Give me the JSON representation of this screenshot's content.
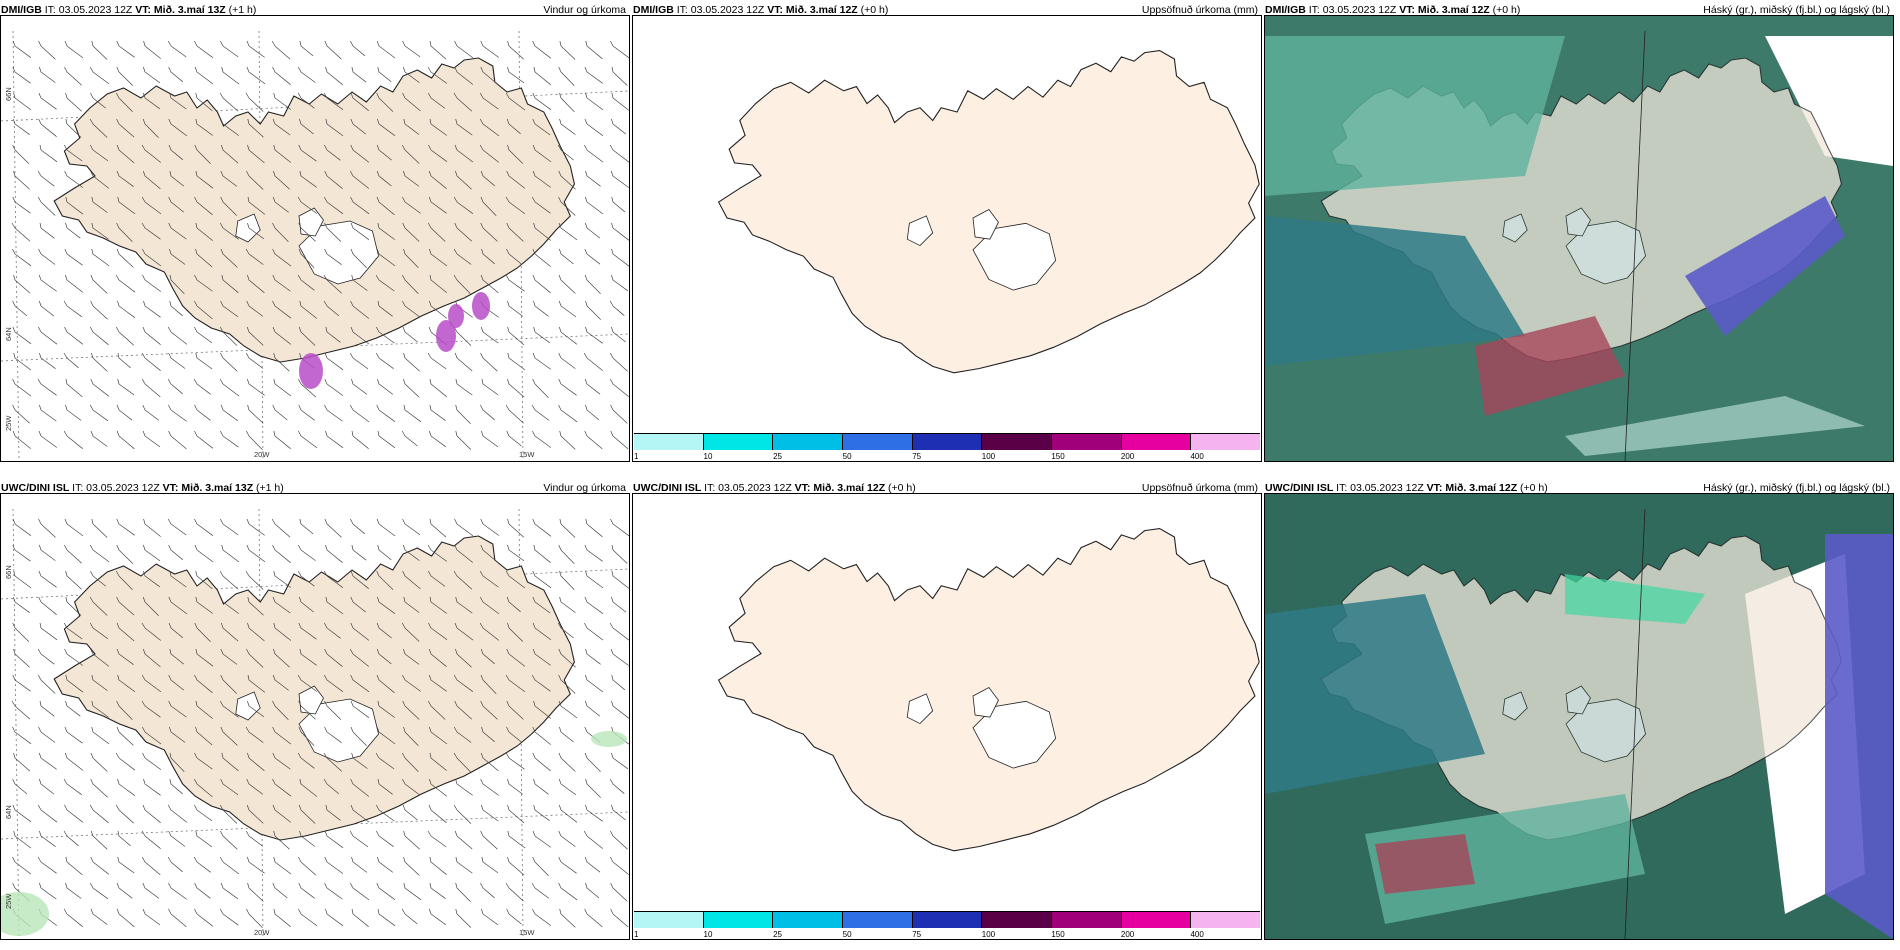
{
  "rows": [
    {
      "panels": [
        {
          "model": "DMI/IGB",
          "it": "IT: 03.05.2023 12Z",
          "vt": "VT: Mið. 3.maí 13Z",
          "lead": "(+1 h)",
          "title": "Vindur og úrkoma"
        },
        {
          "model": "DMI/IGB",
          "it": "IT: 03.05.2023 12Z",
          "vt": "VT: Mið. 3.maí 12Z",
          "lead": "(+0 h)",
          "title": "Uppsöfnuð úrkoma (mm)"
        },
        {
          "model": "DMI/IGB",
          "it": "IT: 03.05.2023 12Z",
          "vt": "VT: Mið. 3.maí 12Z",
          "lead": "(+0 h)",
          "title": "Háský (gr.), miðský (fj.bl.) og lágský (bl.)"
        }
      ]
    },
    {
      "panels": [
        {
          "model": "UWC/DINI ISL",
          "it": "IT: 03.05.2023 12Z",
          "vt": "VT: Mið. 3.maí 13Z",
          "lead": "(+1 h)",
          "title": "Vindur og úrkoma"
        },
        {
          "model": "UWC/DINI ISL",
          "it": "IT: 03.05.2023 12Z",
          "vt": "VT: Mið. 3.maí 12Z",
          "lead": "(+0 h)",
          "title": "Uppsöfnuð úrkoma (mm)"
        },
        {
          "model": "UWC/DINI ISL",
          "it": "IT: 03.05.2023 12Z",
          "vt": "VT: Mið. 3.maí 12Z",
          "lead": "(+0 h)",
          "title": "Háský (gr.), miðský (fj.bl.) og lágský (bl.)"
        }
      ]
    }
  ],
  "map_labels": {
    "lon_20w": "20W",
    "lon_15w": "15W",
    "lon_25w": "25W",
    "lat_66n": "66N",
    "lat_64n": "64N"
  },
  "colorbar": {
    "ticks": [
      "1",
      "10",
      "25",
      "50",
      "75",
      "100",
      "150",
      "200",
      "400"
    ],
    "colors": [
      "#b4f5f5",
      "#00e6e6",
      "#00bfe6",
      "#2e6fe6",
      "#1e2fb4",
      "#5a0046",
      "#a0007a",
      "#e600a0",
      "#f5b4f0"
    ]
  },
  "colors": {
    "land_wind": "#f3e6d4",
    "land_precip": "#fdf0e3",
    "cloud_high": "#5fb39e",
    "cloud_mid": "#2f7a86",
    "cloud_low": "#5b5bc8",
    "precip_purple": "#b84cc8"
  }
}
